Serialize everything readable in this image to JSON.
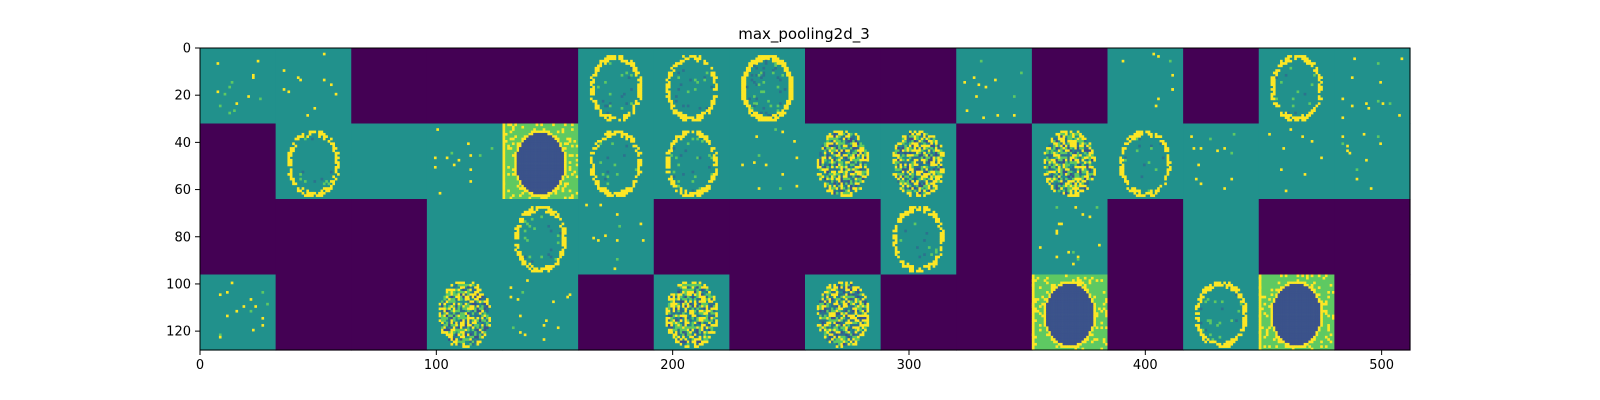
{
  "chart_data": {
    "type": "heatmap",
    "title": "max_pooling2d_3",
    "xlabel": "",
    "ylabel": "",
    "xlim": [
      0,
      512
    ],
    "ylim": [
      128,
      0
    ],
    "x_ticks": [
      "0",
      "100",
      "200",
      "300",
      "400",
      "500"
    ],
    "y_ticks": [
      "0",
      "20",
      "40",
      "60",
      "80",
      "100",
      "120"
    ],
    "grid": false,
    "colormap": "viridis",
    "tile_size": 32,
    "rows": 4,
    "cols": 16,
    "tile_content": [
      [
        "sparse",
        "sparse",
        "dead",
        "dead",
        "dead",
        "ring",
        "ring",
        "ring_bright",
        "dead",
        "dead",
        "sparse",
        "dead",
        "sparse",
        "dead",
        "ring",
        "sparse"
      ],
      [
        "dead",
        "ring",
        "flat",
        "sparse",
        "dark_brain",
        "ring",
        "ring",
        "sparse",
        "textured",
        "textured",
        "dead",
        "textured",
        "ring",
        "sparse",
        "sparse",
        "sparse"
      ],
      [
        "dead",
        "dead",
        "dead",
        "flat",
        "ring",
        "sparse",
        "dead",
        "dead",
        "dead",
        "ring",
        "dead",
        "sparse",
        "dead",
        "flat",
        "dead",
        "dead"
      ],
      [
        "sparse",
        "dead",
        "dead",
        "textured",
        "sparse",
        "dead",
        "textured",
        "dead",
        "textured",
        "dead",
        "dead",
        "dark_brain",
        "dead",
        "ring",
        "dark_brain",
        "dead"
      ]
    ],
    "colors": {
      "dead": "#440154",
      "background": "#21918c",
      "dark": "#3b528b",
      "mid": "#2c728e",
      "light": "#5ec962",
      "bright": "#fde725"
    }
  }
}
